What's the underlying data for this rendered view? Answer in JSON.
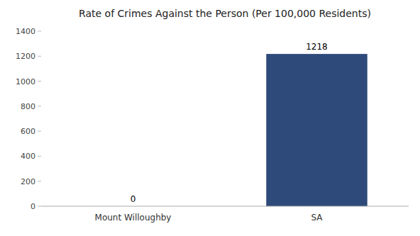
{
  "chart_data": {
    "type": "bar",
    "title": "Rate of Crimes Against the Person (Per 100,000 Residents)",
    "categories": [
      "Mount Willoughby",
      "SA"
    ],
    "values": [
      0,
      1218
    ],
    "color": "#2e4a7a",
    "ylim": [
      0,
      1400
    ],
    "yticks": [
      0,
      200,
      400,
      600,
      800,
      1000,
      1200,
      1400
    ],
    "grid": false,
    "data_labels": true
  }
}
